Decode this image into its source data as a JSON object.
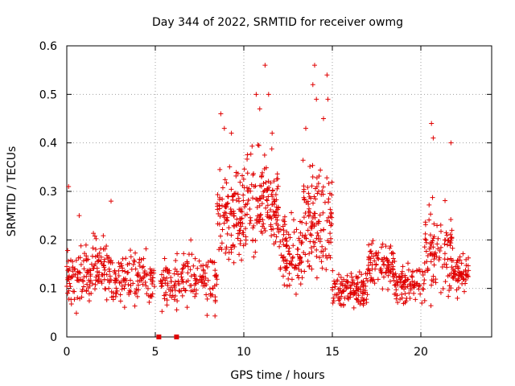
{
  "chart_data": {
    "type": "scatter",
    "title": "Day 344 of 2022, SRMTID for receiver owmg",
    "xlabel": "GPS time / hours",
    "ylabel": "SRMTID / TECUs",
    "xlim": [
      0,
      24
    ],
    "ylim": [
      0,
      0.6
    ],
    "xticks": [
      0,
      5,
      10,
      15,
      20
    ],
    "yticks": [
      0,
      0.1,
      0.2,
      0.3,
      0.4,
      0.5,
      0.6
    ],
    "ytick_labels": [
      "0",
      "0.1",
      "0.2",
      "0.3",
      "0.4",
      "0.5",
      "0.6"
    ],
    "grid": true,
    "marker": "+",
    "color": "#e00000",
    "segments": [
      {
        "x_start": 0.0,
        "x_end": 1.3,
        "median": 0.12,
        "spread": 0.055,
        "count": 80
      },
      {
        "x_start": 1.3,
        "x_end": 2.6,
        "median": 0.14,
        "spread": 0.06,
        "count": 80
      },
      {
        "x_start": 2.6,
        "x_end": 5.0,
        "median": 0.12,
        "spread": 0.05,
        "count": 120
      },
      {
        "x_start": 5.3,
        "x_end": 6.2,
        "median": 0.11,
        "spread": 0.05,
        "count": 50
      },
      {
        "x_start": 6.2,
        "x_end": 8.5,
        "median": 0.12,
        "spread": 0.06,
        "count": 110
      },
      {
        "x_start": 8.5,
        "x_end": 10.0,
        "median": 0.25,
        "spread": 0.09,
        "count": 120
      },
      {
        "x_start": 10.0,
        "x_end": 12.0,
        "median": 0.27,
        "spread": 0.1,
        "count": 150
      },
      {
        "x_start": 12.0,
        "x_end": 13.3,
        "median": 0.17,
        "spread": 0.07,
        "count": 90
      },
      {
        "x_start": 13.3,
        "x_end": 15.0,
        "median": 0.24,
        "spread": 0.1,
        "count": 130
      },
      {
        "x_start": 15.0,
        "x_end": 17.0,
        "median": 0.1,
        "spread": 0.04,
        "count": 120
      },
      {
        "x_start": 17.0,
        "x_end": 18.5,
        "median": 0.15,
        "spread": 0.05,
        "count": 90
      },
      {
        "x_start": 18.5,
        "x_end": 20.2,
        "median": 0.11,
        "spread": 0.04,
        "count": 90
      },
      {
        "x_start": 20.2,
        "x_end": 21.8,
        "median": 0.17,
        "spread": 0.08,
        "count": 100
      },
      {
        "x_start": 21.8,
        "x_end": 22.7,
        "median": 0.13,
        "spread": 0.04,
        "count": 60
      }
    ],
    "peaks": [
      {
        "x": 0.1,
        "y": 0.31
      },
      {
        "x": 8.7,
        "y": 0.46
      },
      {
        "x": 8.9,
        "y": 0.43
      },
      {
        "x": 9.3,
        "y": 0.42
      },
      {
        "x": 10.7,
        "y": 0.5
      },
      {
        "x": 10.9,
        "y": 0.47
      },
      {
        "x": 11.2,
        "y": 0.56
      },
      {
        "x": 11.4,
        "y": 0.5
      },
      {
        "x": 11.6,
        "y": 0.42
      },
      {
        "x": 13.5,
        "y": 0.43
      },
      {
        "x": 13.9,
        "y": 0.52
      },
      {
        "x": 14.0,
        "y": 0.56
      },
      {
        "x": 14.1,
        "y": 0.49
      },
      {
        "x": 14.5,
        "y": 0.45
      },
      {
        "x": 14.7,
        "y": 0.54
      },
      {
        "x": 14.75,
        "y": 0.49
      },
      {
        "x": 20.6,
        "y": 0.44
      },
      {
        "x": 20.7,
        "y": 0.41
      },
      {
        "x": 21.7,
        "y": 0.4
      },
      {
        "x": 2.5,
        "y": 0.28
      },
      {
        "x": 0.7,
        "y": 0.25
      }
    ],
    "zero_points": [
      {
        "x": 5.2,
        "y": 0.0
      },
      {
        "x": 6.2,
        "y": 0.0
      }
    ]
  }
}
